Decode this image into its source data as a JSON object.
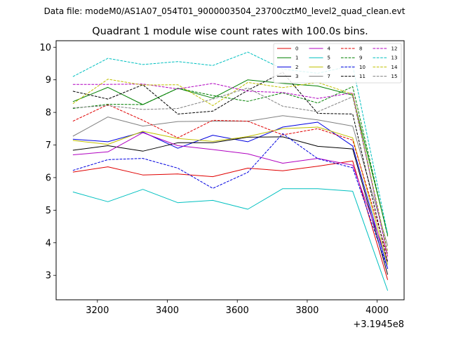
{
  "figure": {
    "suptitle": "Data file: modeM0/AS1A07_054T01_9000003504_23700cztM0_level2_quad_clean.evt"
  },
  "chart_data": {
    "type": "line",
    "title": "Quadrant 1 module wise count rates with 100.0s bins.",
    "xlabel": "",
    "ylabel": "",
    "x_offset_label": "+3.1945e8",
    "x": [
      3130,
      3230,
      3330,
      3430,
      3530,
      3630,
      3730,
      3830,
      3930,
      4030
    ],
    "xlim": [
      3082,
      4077
    ],
    "ylim": [
      2.25,
      10.2
    ],
    "xticks": [
      3200,
      3400,
      3600,
      3800,
      4000
    ],
    "yticks": [
      3,
      4,
      5,
      6,
      7,
      8,
      9,
      10
    ],
    "grid": false,
    "legend_position": "top-right",
    "legend_columns": 4,
    "series": [
      {
        "name": "0",
        "color": "#e00000",
        "dash": "solid",
        "values": [
          6.17,
          6.33,
          6.08,
          6.11,
          6.03,
          6.29,
          6.21,
          6.35,
          6.51,
          2.86
        ]
      },
      {
        "name": "1",
        "color": "#008000",
        "dash": "solid",
        "values": [
          8.33,
          8.77,
          8.24,
          8.74,
          8.44,
          9.0,
          8.89,
          8.81,
          8.53,
          4.25
        ]
      },
      {
        "name": "2",
        "color": "#0000e0",
        "dash": "solid",
        "values": [
          7.18,
          7.1,
          7.4,
          6.9,
          7.3,
          7.1,
          7.55,
          7.7,
          6.97,
          3.2
        ]
      },
      {
        "name": "3",
        "color": "#000000",
        "dash": "solid",
        "values": [
          6.84,
          6.98,
          6.81,
          7.07,
          7.07,
          7.24,
          7.25,
          6.96,
          6.88,
          3.02
        ]
      },
      {
        "name": "4",
        "color": "#b000c0",
        "dash": "solid",
        "values": [
          6.7,
          6.79,
          7.38,
          6.98,
          6.86,
          6.73,
          6.44,
          6.59,
          6.38,
          3.44
        ]
      },
      {
        "name": "5",
        "color": "#00c0c0",
        "dash": "solid",
        "values": [
          5.56,
          5.26,
          5.64,
          5.23,
          5.3,
          5.03,
          5.66,
          5.66,
          5.58,
          2.53
        ]
      },
      {
        "name": "6",
        "color": "#c0c000",
        "dash": "solid",
        "values": [
          7.14,
          7.02,
          7.42,
          7.2,
          7.11,
          7.26,
          7.5,
          7.55,
          7.22,
          3.32
        ]
      },
      {
        "name": "7",
        "color": "#808080",
        "dash": "solid",
        "values": [
          7.27,
          7.86,
          7.58,
          7.72,
          7.73,
          7.73,
          7.9,
          7.77,
          7.58,
          3.91
        ]
      },
      {
        "name": "8",
        "color": "#e00000",
        "dash": "dashed",
        "values": [
          7.73,
          8.24,
          7.76,
          7.22,
          7.76,
          7.73,
          7.31,
          7.5,
          7.15,
          3.58
        ]
      },
      {
        "name": "9",
        "color": "#008000",
        "dash": "dashed",
        "values": [
          8.12,
          8.25,
          8.24,
          8.74,
          8.52,
          8.34,
          8.6,
          8.29,
          8.79,
          4.2
        ]
      },
      {
        "name": "10",
        "color": "#0000e0",
        "dash": "dashed",
        "values": [
          6.22,
          6.55,
          6.59,
          6.29,
          5.67,
          6.16,
          7.35,
          6.58,
          6.3,
          3.2
        ]
      },
      {
        "name": "11",
        "color": "#000000",
        "dash": "dashed",
        "values": [
          8.65,
          8.41,
          8.85,
          7.95,
          8.04,
          8.68,
          9.23,
          7.97,
          7.95,
          3.38
        ]
      },
      {
        "name": "12",
        "color": "#b000c0",
        "dash": "dashed",
        "values": [
          8.86,
          8.86,
          8.87,
          8.72,
          8.89,
          8.65,
          8.61,
          8.43,
          8.6,
          3.56
        ]
      },
      {
        "name": "13",
        "color": "#00c0c0",
        "dash": "dashed",
        "values": [
          9.1,
          9.66,
          9.47,
          9.56,
          9.44,
          9.85,
          9.33,
          9.2,
          9.44,
          4.26
        ]
      },
      {
        "name": "14",
        "color": "#c0c000",
        "dash": "dashed",
        "values": [
          8.27,
          9.02,
          8.84,
          8.85,
          8.21,
          8.92,
          8.76,
          8.92,
          8.56,
          3.73
        ]
      },
      {
        "name": "15",
        "color": "#808080",
        "dash": "dashed",
        "values": [
          8.14,
          8.21,
          8.09,
          8.12,
          8.41,
          8.75,
          8.19,
          8.02,
          8.48,
          3.67
        ]
      }
    ]
  }
}
